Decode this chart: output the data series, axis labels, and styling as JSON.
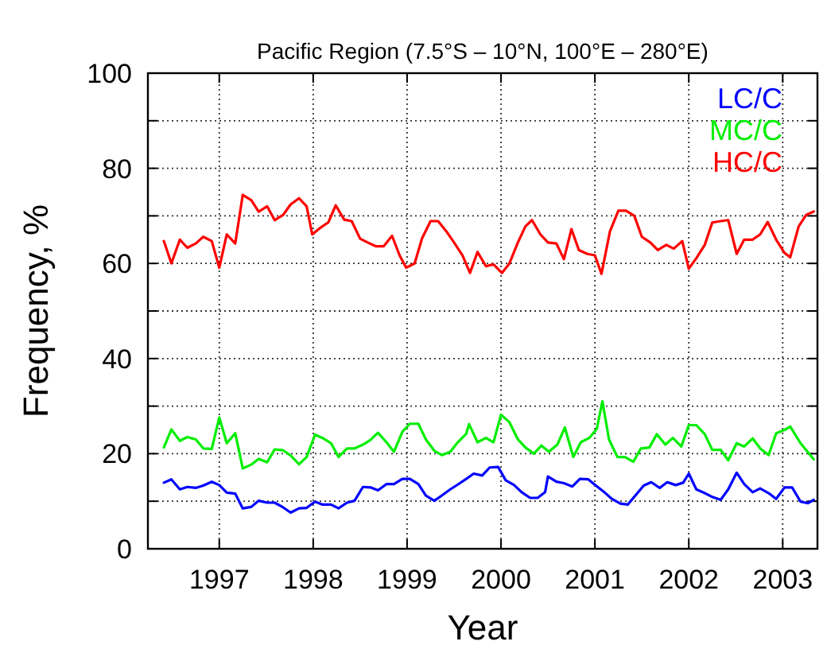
{
  "chart_data": {
    "type": "line",
    "title": "Pacific Region (7.5°S – 10°N, 100°E – 280°E)",
    "xlabel": "Year",
    "ylabel": "Frequency, %",
    "xlim": [
      1996.24,
      2003.37
    ],
    "xticks": [
      1997,
      1998,
      1999,
      2000,
      2001,
      2002,
      2003
    ],
    "ylim": [
      0,
      100
    ],
    "yticks": [
      0,
      {
        "value": 10,
        "label": null
      },
      20,
      {
        "value": 30,
        "label": null
      },
      40,
      {
        "value": 50,
        "label": null
      },
      60,
      {
        "value": 70,
        "label": null
      },
      80,
      {
        "value": 90,
        "label": null
      },
      100
    ],
    "grid": true,
    "legend": "top right",
    "line_style": "solid",
    "series": [
      {
        "name": "LC/C",
        "color": "#0000ff",
        "x": [
          1996.41,
          1996.49,
          1996.58,
          1996.66,
          1996.75,
          1996.83,
          1996.92,
          1997.0,
          1997.08,
          1997.17,
          1997.25,
          1997.34,
          1997.42,
          1997.51,
          1997.59,
          1997.68,
          1997.76,
          1997.85,
          1997.93,
          1998.02,
          1998.1,
          1998.19,
          1998.27,
          1998.36,
          1998.44,
          1998.53,
          1998.61,
          1998.69,
          1998.78,
          1998.86,
          1998.95,
          1999.03,
          1999.12,
          1999.2,
          1999.29,
          1999.37,
          1999.46,
          1999.54,
          1999.63,
          1999.71,
          1999.8,
          1999.88,
          1999.97,
          2000.05,
          2000.14,
          2000.22,
          2000.31,
          2000.39,
          2000.47,
          2000.5,
          2000.59,
          2000.67,
          2000.76,
          2000.84,
          2000.93,
          2001.01,
          2001.1,
          2001.18,
          2001.27,
          2001.35,
          2001.44,
          2001.52,
          2001.6,
          2001.69,
          2001.77,
          2001.86,
          2001.94,
          2002.0,
          2002.08,
          2002.17,
          2002.25,
          2002.34,
          2002.42,
          2002.51,
          2002.59,
          2002.68,
          2002.76,
          2002.85,
          2002.93,
          2003.02,
          2003.1,
          2003.19,
          2003.27,
          2003.33
        ],
        "values": [
          13.9,
          14.6,
          12.5,
          13.0,
          12.8,
          13.3,
          14.1,
          13.4,
          11.8,
          11.6,
          8.5,
          8.8,
          10.1,
          9.7,
          9.7,
          8.7,
          7.6,
          8.5,
          8.6,
          9.9,
          9.3,
          9.3,
          8.5,
          9.7,
          10.1,
          13.0,
          12.9,
          12.3,
          13.6,
          13.6,
          14.7,
          14.7,
          13.6,
          11.2,
          10.1,
          11.2,
          12.5,
          13.5,
          14.7,
          15.8,
          15.4,
          17.1,
          17.2,
          14.4,
          13.4,
          11.9,
          10.7,
          10.7,
          11.9,
          15.2,
          14.1,
          13.8,
          13.1,
          14.7,
          14.6,
          13.3,
          11.9,
          10.5,
          9.5,
          9.3,
          11.4,
          13.3,
          14.0,
          12.8,
          14.0,
          13.4,
          13.9,
          15.8,
          12.5,
          11.7,
          10.9,
          10.3,
          12.5,
          16.0,
          13.6,
          11.9,
          12.7,
          11.7,
          10.5,
          12.9,
          12.9,
          9.9,
          9.6,
          10.3
        ]
      },
      {
        "name": "MC/C",
        "color": "#00ee00",
        "x": [
          1996.41,
          1996.49,
          1996.58,
          1996.66,
          1996.75,
          1996.83,
          1996.92,
          1997.0,
          1997.08,
          1997.17,
          1997.25,
          1997.34,
          1997.42,
          1997.51,
          1997.59,
          1997.68,
          1997.76,
          1997.85,
          1997.93,
          1998.02,
          1998.1,
          1998.19,
          1998.27,
          1998.36,
          1998.44,
          1998.53,
          1998.61,
          1998.69,
          1998.78,
          1998.86,
          1998.95,
          1999.03,
          1999.12,
          1999.2,
          1999.29,
          1999.37,
          1999.46,
          1999.54,
          1999.63,
          1999.66,
          1999.75,
          1999.84,
          1999.92,
          2000.0,
          2000.09,
          2000.18,
          2000.26,
          2000.35,
          2000.43,
          2000.51,
          2000.6,
          2000.68,
          2000.77,
          2000.85,
          2000.94,
          2001.02,
          2001.08,
          2001.15,
          2001.24,
          2001.32,
          2001.41,
          2001.49,
          2001.58,
          2001.66,
          2001.75,
          2001.83,
          2001.92,
          2002.0,
          2002.08,
          2002.17,
          2002.25,
          2002.34,
          2002.42,
          2002.51,
          2002.59,
          2002.68,
          2002.76,
          2002.85,
          2002.93,
          2003.02,
          2003.08,
          2003.19,
          2003.33
        ],
        "values": [
          21.3,
          25.1,
          22.7,
          23.5,
          23.0,
          21.1,
          21.0,
          27.6,
          22.2,
          24.3,
          16.9,
          17.7,
          18.9,
          18.2,
          20.9,
          20.7,
          19.6,
          17.8,
          19.3,
          24.0,
          23.3,
          22.2,
          19.3,
          21.1,
          21.1,
          21.9,
          22.9,
          24.4,
          22.4,
          20.4,
          24.6,
          26.3,
          26.3,
          23.0,
          20.6,
          19.7,
          20.4,
          22.4,
          24.2,
          26.2,
          22.4,
          23.3,
          22.4,
          28.2,
          26.6,
          23.0,
          21.3,
          20.0,
          21.7,
          20.4,
          21.9,
          25.5,
          19.3,
          22.4,
          23.3,
          25.2,
          31.0,
          23.0,
          19.3,
          19.3,
          18.3,
          21.1,
          21.3,
          24.1,
          21.9,
          23.3,
          21.5,
          26.0,
          26.0,
          24.1,
          20.8,
          20.8,
          18.6,
          22.2,
          21.5,
          23.2,
          21.1,
          19.7,
          24.3,
          25.0,
          25.7,
          22.2,
          18.8
        ]
      },
      {
        "name": "HC/C",
        "color": "#ff0000",
        "x": [
          1996.41,
          1996.49,
          1996.58,
          1996.66,
          1996.75,
          1996.83,
          1996.92,
          1997.0,
          1997.08,
          1997.17,
          1997.25,
          1997.34,
          1997.42,
          1997.51,
          1997.59,
          1997.68,
          1997.76,
          1997.85,
          1997.93,
          1997.99,
          1998.07,
          1998.16,
          1998.24,
          1998.33,
          1998.41,
          1998.5,
          1998.58,
          1998.67,
          1998.75,
          1998.84,
          1998.92,
          1998.99,
          1999.08,
          1999.16,
          1999.25,
          1999.33,
          1999.42,
          1999.5,
          1999.59,
          1999.67,
          1999.75,
          1999.84,
          1999.92,
          2000.01,
          2000.09,
          2000.18,
          2000.26,
          2000.33,
          2000.42,
          2000.5,
          2000.59,
          2000.67,
          2000.75,
          2000.83,
          2000.92,
          2001.0,
          2001.07,
          2001.16,
          2001.25,
          2001.33,
          2001.42,
          2001.5,
          2001.59,
          2001.67,
          2001.76,
          2001.84,
          2001.93,
          2002.0,
          2002.08,
          2002.17,
          2002.25,
          2002.34,
          2002.42,
          2002.51,
          2002.59,
          2002.68,
          2002.76,
          2002.84,
          2002.93,
          2003.02,
          2003.08,
          2003.17,
          2003.25,
          2003.33
        ],
        "values": [
          64.7,
          60.0,
          65.0,
          63.3,
          64.2,
          65.6,
          64.7,
          59.1,
          66.1,
          64.2,
          74.4,
          73.3,
          70.9,
          72.0,
          69.1,
          70.2,
          72.4,
          73.7,
          72.0,
          66.1,
          67.4,
          68.6,
          72.2,
          69.2,
          68.9,
          65.2,
          64.4,
          63.6,
          63.6,
          65.8,
          61.7,
          59.1,
          60.0,
          65.3,
          68.9,
          68.9,
          66.7,
          64.4,
          61.7,
          58.0,
          62.4,
          59.4,
          59.8,
          58.0,
          60.0,
          64.4,
          67.8,
          69.1,
          66.1,
          64.4,
          64.2,
          60.9,
          67.2,
          62.8,
          62.0,
          61.7,
          57.8,
          66.7,
          71.1,
          71.1,
          70.0,
          65.6,
          64.4,
          62.8,
          63.9,
          63.1,
          64.7,
          58.9,
          61.1,
          63.9,
          68.6,
          68.9,
          69.1,
          62.0,
          65.0,
          65.0,
          66.1,
          68.7,
          65.0,
          62.2,
          61.3,
          67.8,
          70.2,
          70.9
        ]
      }
    ]
  }
}
